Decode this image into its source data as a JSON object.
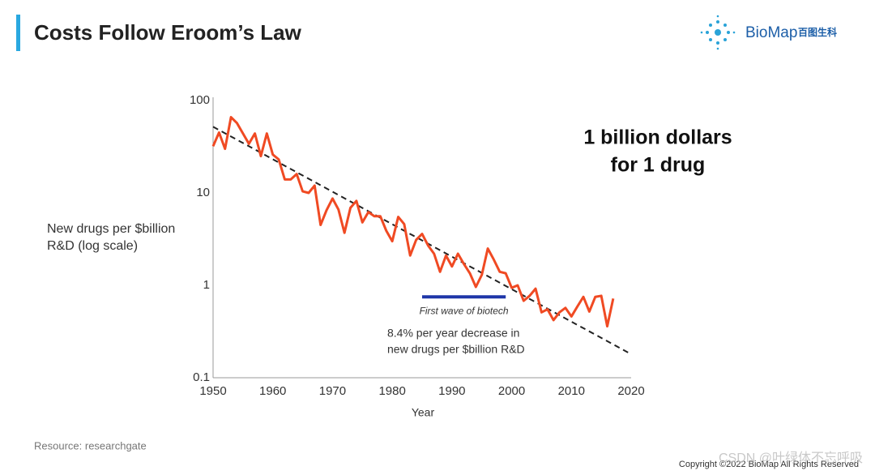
{
  "slide": {
    "title": "Costs Follow Eroom’s Law",
    "logo_text": "BioMap",
    "logo_cn": "百图生科",
    "callout": [
      "1 billion dollars",
      "for 1 drug"
    ],
    "resource": "Resource: researchgate",
    "copyright": "Copyright ©2022 BioMap All Rights Reserved",
    "watermark": "CSDN @叶绿体不忘呼吸"
  },
  "chart_data": {
    "type": "line",
    "log_scale": true,
    "grid": false,
    "xlabel": "Year",
    "ylabel": [
      "New drugs per $billion",
      "R&D (log scale)"
    ],
    "xlim": [
      1950,
      2020
    ],
    "xticks": [
      1950,
      1960,
      1970,
      1980,
      1990,
      2000,
      2010,
      2020
    ],
    "ylim": [
      0.1,
      100
    ],
    "yticks": [
      100,
      10,
      1,
      0.1
    ],
    "x": [
      1950,
      1951,
      1952,
      1953,
      1954,
      1955,
      1956,
      1957,
      1958,
      1959,
      1960,
      1961,
      1962,
      1963,
      1964,
      1965,
      1966,
      1967,
      1968,
      1969,
      1970,
      1971,
      1972,
      1973,
      1974,
      1975,
      1976,
      1977,
      1978,
      1979,
      1980,
      1981,
      1982,
      1983,
      1984,
      1985,
      1986,
      1987,
      1988,
      1989,
      1990,
      1991,
      1992,
      1993,
      1994,
      1995,
      1996,
      1997,
      1998,
      1999,
      2000,
      2001,
      2002,
      2003,
      2004,
      2005,
      2006,
      2007,
      2008,
      2009,
      2010,
      2011,
      2012,
      2013,
      2014,
      2015,
      2016,
      2017
    ],
    "series": [
      {
        "color": "#f04a23",
        "values": [
          32,
          45,
          30,
          66,
          57,
          44,
          34,
          44,
          25,
          44,
          26,
          23,
          14,
          14,
          16,
          10.4,
          10,
          12,
          4.5,
          6.5,
          8.7,
          6.6,
          3.7,
          6.9,
          8.2,
          4.8,
          6.2,
          5.6,
          5.6,
          3.9,
          3.0,
          5.5,
          4.6,
          2.1,
          3.1,
          3.6,
          2.7,
          2.2,
          1.4,
          2.1,
          1.6,
          2.2,
          1.7,
          1.35,
          0.96,
          1.3,
          2.5,
          1.9,
          1.4,
          1.35,
          0.94,
          1.0,
          0.68,
          0.77,
          0.92,
          0.51,
          0.55,
          0.42,
          0.51,
          0.57,
          0.46,
          0.59,
          0.75,
          0.52,
          0.75,
          0.77,
          0.36,
          0.72
        ]
      }
    ],
    "trend": {
      "x": [
        1950,
        2020
      ],
      "values": [
        52,
        0.18
      ],
      "color": "#222222"
    },
    "biotech": {
      "x": [
        1985,
        1999
      ],
      "value": 0.75,
      "color": "#1f36a8",
      "label": "First wave of biotech"
    },
    "annotation": [
      "8.4% per year decrease in",
      "new drugs per $billion R&D"
    ]
  }
}
